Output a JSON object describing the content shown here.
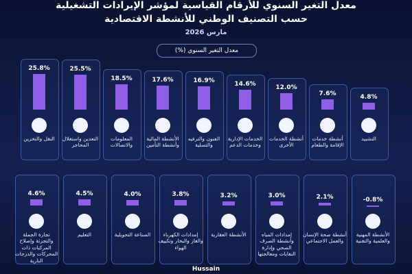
{
  "chart_data": {
    "type": "bar",
    "title": "معدل التغير السنوي للأرقام القياسية لمؤشر الإيرادات التشغيلية",
    "subtitle": "حسب التصنيف الوطني للأنشطة الاقتصادية",
    "date": "مارس 2026",
    "legend": "معدل التغير السنوي (%)",
    "color": "#8f5fe8",
    "categories": [
      "النقل والتخزين",
      "التعدين واستغلال المحاجر",
      "المعلومات والاتصالات",
      "الأنشطة المالية وأنشطة التأمين",
      "الفنون والترفيه والتسلية",
      "الخدمات الإدارية وخدمات الدعم",
      "أنشطة الخدمات الأخرى",
      "أنشطة خدمات الإقامة والطعام",
      "التشييد",
      "تجارة الجملة والتجزئة وإصلاح المركبات ذات المحركات والدرجات النارية",
      "التعليم",
      "الصناعة التحويلية",
      "إمدادات الكهرباء والغاز والبخار وتكييف الهواء",
      "الأنشطة العقارية",
      "إمدادات المياه وأنشطة الصرف الصحي وإدارة النفايات ومعالجتها",
      "أنشطة صحة الإنسان والعمل الاجتماعي",
      "الأنشطة المهنية والعلمية والتقنية"
    ],
    "values": [
      25.8,
      25.5,
      18.5,
      17.6,
      16.9,
      14.6,
      12.0,
      7.6,
      4.8,
      4.6,
      4.5,
      4.0,
      3.8,
      3.2,
      3.0,
      2.1,
      -0.8
    ],
    "value_labels": [
      "25.8%",
      "25.5%",
      "18.5%",
      "17.6%",
      "16.9%",
      "14.6%",
      "12.0%",
      "7.6%",
      "4.8%",
      "4.6%",
      "4.5%",
      "4.0%",
      "3.8%",
      "3.2%",
      "3.0%",
      "2.1%",
      "-0.8%"
    ],
    "footer": "Hussain"
  }
}
